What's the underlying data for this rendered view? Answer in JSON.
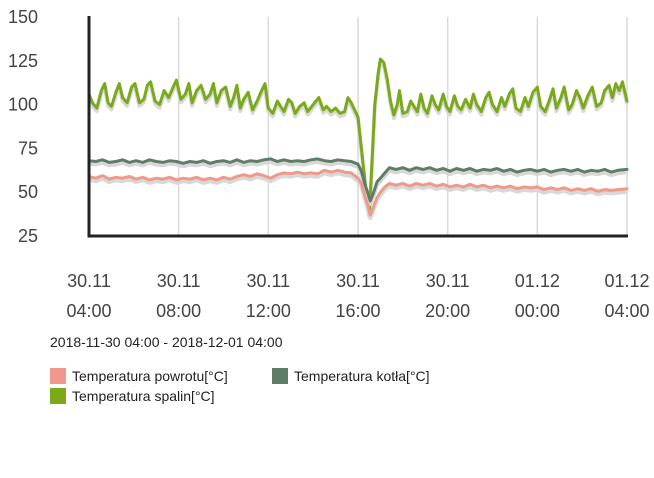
{
  "colors": {
    "axis": "#222222",
    "grid": "#d9d9d9",
    "tick_text": "#444444",
    "shadow": "#d8d8d8"
  },
  "range_label": "2018-11-30 04:00 - 2018-12-01 04:00",
  "chart_data": {
    "type": "line",
    "ylim": [
      25,
      150
    ],
    "y_ticks": [
      25,
      50,
      75,
      100,
      125,
      150
    ],
    "x_range_hours": [
      0,
      24
    ],
    "x_ticks": [
      {
        "hour": 0,
        "line1": "30.11",
        "line2": "04:00"
      },
      {
        "hour": 4,
        "line1": "30.11",
        "line2": "08:00"
      },
      {
        "hour": 8,
        "line1": "30.11",
        "line2": "12:00"
      },
      {
        "hour": 12,
        "line1": "30.11",
        "line2": "16:00"
      },
      {
        "hour": 16,
        "line1": "30.11",
        "line2": "20:00"
      },
      {
        "hour": 20,
        "line1": "01.12",
        "line2": "00:00"
      },
      {
        "hour": 24,
        "line1": "01.12",
        "line2": "04:00"
      }
    ],
    "grid": true,
    "legend_position": "bottom",
    "series": [
      {
        "name": "Temperatura spalin[°C]",
        "color": "#7aaa1a",
        "points": [
          [
            0,
            106
          ],
          [
            0.15,
            101
          ],
          [
            0.35,
            98
          ],
          [
            0.55,
            108
          ],
          [
            0.7,
            112
          ],
          [
            0.85,
            101
          ],
          [
            1.0,
            99
          ],
          [
            1.2,
            107
          ],
          [
            1.35,
            112
          ],
          [
            1.5,
            104
          ],
          [
            1.7,
            101
          ],
          [
            1.9,
            110
          ],
          [
            2.05,
            112
          ],
          [
            2.25,
            101
          ],
          [
            2.45,
            103
          ],
          [
            2.6,
            111
          ],
          [
            2.75,
            113
          ],
          [
            2.95,
            102
          ],
          [
            3.15,
            100
          ],
          [
            3.35,
            108
          ],
          [
            3.55,
            104
          ],
          [
            3.75,
            110
          ],
          [
            3.9,
            114
          ],
          [
            4.1,
            103
          ],
          [
            4.3,
            106
          ],
          [
            4.45,
            112
          ],
          [
            4.6,
            101
          ],
          [
            4.8,
            108
          ],
          [
            5.0,
            111
          ],
          [
            5.2,
            103
          ],
          [
            5.4,
            106
          ],
          [
            5.55,
            112
          ],
          [
            5.7,
            101
          ],
          [
            5.9,
            108
          ],
          [
            6.1,
            110
          ],
          [
            6.3,
            99
          ],
          [
            6.45,
            104
          ],
          [
            6.6,
            111
          ],
          [
            6.75,
            98
          ],
          [
            6.9,
            103
          ],
          [
            7.1,
            107
          ],
          [
            7.3,
            97
          ],
          [
            7.5,
            102
          ],
          [
            7.7,
            108
          ],
          [
            7.85,
            112
          ],
          [
            8.0,
            98
          ],
          [
            8.2,
            95
          ],
          [
            8.4,
            102
          ],
          [
            8.55,
            99
          ],
          [
            8.7,
            96
          ],
          [
            8.9,
            103
          ],
          [
            9.05,
            101
          ],
          [
            9.2,
            95
          ],
          [
            9.4,
            99
          ],
          [
            9.6,
            101
          ],
          [
            9.75,
            96
          ],
          [
            10.0,
            100
          ],
          [
            10.25,
            104
          ],
          [
            10.45,
            97
          ],
          [
            10.6,
            99
          ],
          [
            10.8,
            96
          ],
          [
            11.0,
            98
          ],
          [
            11.2,
            95
          ],
          [
            11.4,
            96
          ],
          [
            11.55,
            104
          ],
          [
            11.7,
            101
          ],
          [
            11.85,
            97
          ],
          [
            12.0,
            93
          ],
          [
            12.15,
            75
          ],
          [
            12.3,
            58
          ],
          [
            12.4,
            44
          ],
          [
            12.5,
            38
          ],
          [
            12.6,
            60
          ],
          [
            12.75,
            100
          ],
          [
            12.9,
            118
          ],
          [
            13.0,
            126
          ],
          [
            13.15,
            124
          ],
          [
            13.3,
            115
          ],
          [
            13.45,
            102
          ],
          [
            13.6,
            94
          ],
          [
            13.75,
            100
          ],
          [
            13.85,
            108
          ],
          [
            14.0,
            95
          ],
          [
            14.2,
            96
          ],
          [
            14.35,
            102
          ],
          [
            14.5,
            99
          ],
          [
            14.65,
            96
          ],
          [
            14.8,
            106
          ],
          [
            14.95,
            98
          ],
          [
            15.1,
            95
          ],
          [
            15.3,
            105
          ],
          [
            15.45,
            100
          ],
          [
            15.6,
            97
          ],
          [
            15.8,
            106
          ],
          [
            15.95,
            99
          ],
          [
            16.1,
            96
          ],
          [
            16.3,
            105
          ],
          [
            16.45,
            99
          ],
          [
            16.6,
            97
          ],
          [
            16.8,
            103
          ],
          [
            17.0,
            98
          ],
          [
            17.15,
            106
          ],
          [
            17.3,
            100
          ],
          [
            17.5,
            96
          ],
          [
            17.7,
            104
          ],
          [
            17.85,
            107
          ],
          [
            18.0,
            100
          ],
          [
            18.2,
            96
          ],
          [
            18.4,
            104
          ],
          [
            18.55,
            99
          ],
          [
            18.75,
            106
          ],
          [
            18.9,
            109
          ],
          [
            19.05,
            98
          ],
          [
            19.25,
            96
          ],
          [
            19.45,
            104
          ],
          [
            19.6,
            99
          ],
          [
            19.8,
            107
          ],
          [
            20.0,
            110
          ],
          [
            20.15,
            99
          ],
          [
            20.35,
            96
          ],
          [
            20.55,
            103
          ],
          [
            20.7,
            109
          ],
          [
            20.85,
            98
          ],
          [
            21.05,
            104
          ],
          [
            21.2,
            110
          ],
          [
            21.4,
            97
          ],
          [
            21.55,
            100
          ],
          [
            21.75,
            108
          ],
          [
            21.9,
            104
          ],
          [
            22.05,
            98
          ],
          [
            22.25,
            105
          ],
          [
            22.45,
            110
          ],
          [
            22.65,
            99
          ],
          [
            22.85,
            101
          ],
          [
            23.0,
            108
          ],
          [
            23.2,
            111
          ],
          [
            23.35,
            104
          ],
          [
            23.5,
            112
          ],
          [
            23.65,
            108
          ],
          [
            23.8,
            113
          ],
          [
            24,
            102
          ]
        ]
      },
      {
        "name": "Temperatura kotła[°C]",
        "color": "#5f7d66",
        "points": [
          [
            0,
            68
          ],
          [
            0.3,
            67.5
          ],
          [
            0.6,
            68.5
          ],
          [
            0.9,
            67
          ],
          [
            1.2,
            67.5
          ],
          [
            1.5,
            68.5
          ],
          [
            1.8,
            67
          ],
          [
            2.1,
            68
          ],
          [
            2.4,
            67
          ],
          [
            2.7,
            68.5
          ],
          [
            3.0,
            67.5
          ],
          [
            3.3,
            67
          ],
          [
            3.6,
            68
          ],
          [
            3.9,
            67.5
          ],
          [
            4.2,
            66.5
          ],
          [
            4.5,
            67.5
          ],
          [
            4.8,
            67
          ],
          [
            5.1,
            68
          ],
          [
            5.4,
            66.5
          ],
          [
            5.7,
            67.5
          ],
          [
            6.0,
            68
          ],
          [
            6.3,
            67
          ],
          [
            6.6,
            68.5
          ],
          [
            6.9,
            67
          ],
          [
            7.2,
            68
          ],
          [
            7.5,
            67.5
          ],
          [
            7.8,
            68.5
          ],
          [
            8.1,
            69
          ],
          [
            8.4,
            67.5
          ],
          [
            8.7,
            68.5
          ],
          [
            9.0,
            67.5
          ],
          [
            9.3,
            68
          ],
          [
            9.6,
            67.5
          ],
          [
            9.9,
            68.5
          ],
          [
            10.2,
            69
          ],
          [
            10.5,
            68
          ],
          [
            10.8,
            67.5
          ],
          [
            11.1,
            68.5
          ],
          [
            11.4,
            68
          ],
          [
            11.7,
            67.5
          ],
          [
            12.0,
            66
          ],
          [
            12.15,
            62
          ],
          [
            12.3,
            55
          ],
          [
            12.45,
            49
          ],
          [
            12.55,
            45
          ],
          [
            12.7,
            50
          ],
          [
            12.85,
            56
          ],
          [
            13.0,
            58
          ],
          [
            13.2,
            61
          ],
          [
            13.4,
            64
          ],
          [
            13.7,
            63
          ],
          [
            14.0,
            64
          ],
          [
            14.3,
            62.5
          ],
          [
            14.6,
            64
          ],
          [
            14.9,
            63
          ],
          [
            15.2,
            64
          ],
          [
            15.5,
            62.5
          ],
          [
            15.8,
            63.5
          ],
          [
            16.1,
            62
          ],
          [
            16.4,
            63.5
          ],
          [
            16.7,
            62.5
          ],
          [
            17.0,
            63.5
          ],
          [
            17.3,
            62
          ],
          [
            17.6,
            63
          ],
          [
            17.9,
            62.5
          ],
          [
            18.2,
            63.5
          ],
          [
            18.5,
            62
          ],
          [
            18.8,
            63
          ],
          [
            19.1,
            61.5
          ],
          [
            19.4,
            62.5
          ],
          [
            19.7,
            63
          ],
          [
            20.0,
            62
          ],
          [
            20.3,
            63
          ],
          [
            20.6,
            61.5
          ],
          [
            20.9,
            62.5
          ],
          [
            21.2,
            63
          ],
          [
            21.5,
            62
          ],
          [
            21.8,
            63
          ],
          [
            22.1,
            61.5
          ],
          [
            22.4,
            62.5
          ],
          [
            22.7,
            62
          ],
          [
            23.0,
            63
          ],
          [
            23.3,
            61.5
          ],
          [
            23.6,
            62.5
          ],
          [
            24,
            63
          ]
        ]
      },
      {
        "name": "Temperatura powrotu[°C]",
        "color": "#f0998a",
        "points": [
          [
            0,
            59
          ],
          [
            0.3,
            58
          ],
          [
            0.6,
            59.5
          ],
          [
            0.9,
            57.5
          ],
          [
            1.2,
            58.5
          ],
          [
            1.5,
            58
          ],
          [
            1.8,
            59
          ],
          [
            2.1,
            57.5
          ],
          [
            2.4,
            58.5
          ],
          [
            2.7,
            57
          ],
          [
            3.0,
            58
          ],
          [
            3.3,
            57.5
          ],
          [
            3.6,
            58.5
          ],
          [
            3.9,
            57
          ],
          [
            4.2,
            58
          ],
          [
            4.5,
            57.5
          ],
          [
            4.8,
            58.5
          ],
          [
            5.1,
            57
          ],
          [
            5.4,
            58
          ],
          [
            5.7,
            57
          ],
          [
            6.0,
            58.5
          ],
          [
            6.3,
            57.5
          ],
          [
            6.6,
            59
          ],
          [
            6.9,
            60
          ],
          [
            7.2,
            59
          ],
          [
            7.5,
            60.5
          ],
          [
            7.8,
            59.5
          ],
          [
            8.1,
            58
          ],
          [
            8.4,
            60
          ],
          [
            8.7,
            61
          ],
          [
            9.0,
            60.5
          ],
          [
            9.3,
            61.5
          ],
          [
            9.6,
            60.5
          ],
          [
            9.9,
            61
          ],
          [
            10.2,
            60.5
          ],
          [
            10.5,
            62.5
          ],
          [
            10.8,
            61.5
          ],
          [
            11.1,
            62.5
          ],
          [
            11.4,
            61.5
          ],
          [
            11.7,
            61
          ],
          [
            12.0,
            58
          ],
          [
            12.15,
            55
          ],
          [
            12.3,
            48
          ],
          [
            12.45,
            42
          ],
          [
            12.55,
            37
          ],
          [
            12.7,
            42
          ],
          [
            12.85,
            47
          ],
          [
            13.0,
            50
          ],
          [
            13.2,
            53
          ],
          [
            13.4,
            55
          ],
          [
            13.7,
            54
          ],
          [
            14.0,
            55
          ],
          [
            14.3,
            53.5
          ],
          [
            14.6,
            55
          ],
          [
            14.9,
            54
          ],
          [
            15.2,
            55
          ],
          [
            15.5,
            53.5
          ],
          [
            15.8,
            54.5
          ],
          [
            16.1,
            53
          ],
          [
            16.4,
            54
          ],
          [
            16.7,
            53
          ],
          [
            17.0,
            54.5
          ],
          [
            17.3,
            53
          ],
          [
            17.6,
            54
          ],
          [
            17.9,
            52.5
          ],
          [
            18.2,
            53.5
          ],
          [
            18.5,
            52.5
          ],
          [
            18.8,
            53.5
          ],
          [
            19.1,
            52
          ],
          [
            19.4,
            53
          ],
          [
            19.7,
            52.5
          ],
          [
            20.0,
            53
          ],
          [
            20.3,
            51.5
          ],
          [
            20.6,
            52.5
          ],
          [
            20.9,
            51.5
          ],
          [
            21.2,
            52.5
          ],
          [
            21.5,
            51
          ],
          [
            21.8,
            52
          ],
          [
            22.1,
            51
          ],
          [
            22.4,
            52
          ],
          [
            22.7,
            50.5
          ],
          [
            23.0,
            51.5
          ],
          [
            23.3,
            51
          ],
          [
            23.6,
            51.5
          ],
          [
            24,
            52
          ]
        ]
      }
    ],
    "legend": [
      {
        "label": "Temperatura powrotu[°C]",
        "color": "#f0998a"
      },
      {
        "label": "Temperatura kotła[°C]",
        "color": "#5f7d66"
      },
      {
        "label": "Temperatura spalin[°C]",
        "color": "#7aaa1a"
      }
    ]
  }
}
